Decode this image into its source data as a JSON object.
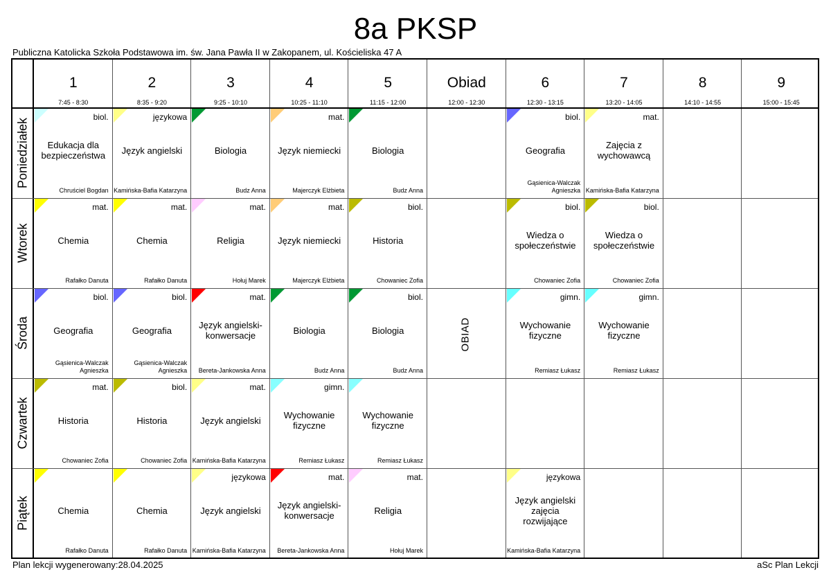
{
  "title": "8a PKSP",
  "school": "Publiczna Katolicka Szkoła Podstawowa im. św. Jana Pawła II w Zakopanem, ul. Kościeliska 47 A",
  "footer": {
    "generated": "Plan lekcji wygenerowany:28.04.2025",
    "brand": "aSc Plan Lekcji"
  },
  "periods": [
    {
      "label": "1",
      "time": "7:45 - 8:30"
    },
    {
      "label": "2",
      "time": "8:35 - 9:20"
    },
    {
      "label": "3",
      "time": "9:25 - 10:10"
    },
    {
      "label": "4",
      "time": "10:25 - 11:10"
    },
    {
      "label": "5",
      "time": "11:15 - 12:00"
    },
    {
      "label": "Obiad",
      "time": "12:00 - 12:30"
    },
    {
      "label": "6",
      "time": "12:30 - 13:15"
    },
    {
      "label": "7",
      "time": "13:20 - 14:05"
    },
    {
      "label": "8",
      "time": "14:10 - 14:55"
    },
    {
      "label": "9",
      "time": "15:00 - 15:45"
    }
  ],
  "lunch_label": "OBIAD",
  "days": [
    "Poniedziałek",
    "Wtorek",
    "Środa",
    "Czwartek",
    "Piątek"
  ],
  "lessons": [
    {
      "day": 0,
      "col": 0,
      "group": "biol.",
      "subject": "Edukacja dla bezpieczeństwa",
      "teacher": "Chruściel Bogdan",
      "color": "#ccffff"
    },
    {
      "day": 0,
      "col": 1,
      "group": "językowa",
      "subject": "Język angielski",
      "teacher": "Kamińska-Bafia Katarzyna",
      "color": "#ffff88"
    },
    {
      "day": 0,
      "col": 2,
      "group": "",
      "subject": "Biologia",
      "teacher": "Budz Anna",
      "color": "#009933"
    },
    {
      "day": 0,
      "col": 3,
      "group": "mat.",
      "subject": "Język niemiecki",
      "teacher": "Majerczyk Elżbieta",
      "color": "#ffcc77"
    },
    {
      "day": 0,
      "col": 4,
      "group": "",
      "subject": "Biologia",
      "teacher": "Budz Anna",
      "color": "#009933"
    },
    {
      "day": 0,
      "col": 6,
      "group": "biol.",
      "subject": "Geografia",
      "teacher": "Gąsienica-Walczak Agnieszka",
      "color": "#6666ff"
    },
    {
      "day": 0,
      "col": 7,
      "group": "mat.",
      "subject": "Zajęcia z wychowawcą",
      "teacher": "Kamińska-Bafia Katarzyna",
      "color": "#ffff88"
    },
    {
      "day": 1,
      "col": 0,
      "group": "mat.",
      "subject": "Chemia",
      "teacher": "Rafałko Danuta",
      "color": "#ffff00"
    },
    {
      "day": 1,
      "col": 1,
      "group": "mat.",
      "subject": "Chemia",
      "teacher": "Rafałko Danuta",
      "color": "#ffff00"
    },
    {
      "day": 1,
      "col": 2,
      "group": "mat.",
      "subject": "Religia",
      "teacher": "Hołuj Marek",
      "color": "#ffccff"
    },
    {
      "day": 1,
      "col": 3,
      "group": "mat.",
      "subject": "Język niemiecki",
      "teacher": "Majerczyk Elżbieta",
      "color": "#ffcc77"
    },
    {
      "day": 1,
      "col": 4,
      "group": "biol.",
      "subject": "Historia",
      "teacher": "Chowaniec Zofia",
      "color": "#bbbb00"
    },
    {
      "day": 1,
      "col": 6,
      "group": "biol.",
      "subject": "Wiedza o społeczeństwie",
      "teacher": "Chowaniec Zofia",
      "color": "#bbbb00"
    },
    {
      "day": 1,
      "col": 7,
      "group": "biol.",
      "subject": "Wiedza o społeczeństwie",
      "teacher": "Chowaniec Zofia",
      "color": "#bbbb00"
    },
    {
      "day": 2,
      "col": 0,
      "group": "biol.",
      "subject": "Geografia",
      "teacher": "Gąsienica-Walczak Agnieszka",
      "color": "#6666ff"
    },
    {
      "day": 2,
      "col": 1,
      "group": "biol.",
      "subject": "Geografia",
      "teacher": "Gąsienica-Walczak Agnieszka",
      "color": "#6666ff"
    },
    {
      "day": 2,
      "col": 2,
      "group": "mat.",
      "subject": "Język angielski-konwersacje",
      "teacher": "Bereta-Jankowska Anna",
      "color": "#ff0000"
    },
    {
      "day": 2,
      "col": 3,
      "group": "",
      "subject": "Biologia",
      "teacher": "Budz Anna",
      "color": "#009933"
    },
    {
      "day": 2,
      "col": 4,
      "group": "biol.",
      "subject": "Biologia",
      "teacher": "Budz Anna",
      "color": "#009933"
    },
    {
      "day": 2,
      "col": 6,
      "group": "gimn.",
      "subject": "Wychowanie fizyczne",
      "teacher": "Remiasz Łukasz",
      "color": "#66ffff"
    },
    {
      "day": 2,
      "col": 7,
      "group": "gimn.",
      "subject": "Wychowanie fizyczne",
      "teacher": "Remiasz Łukasz",
      "color": "#66ffff"
    },
    {
      "day": 3,
      "col": 0,
      "group": "mat.",
      "subject": "Historia",
      "teacher": "Chowaniec Zofia",
      "color": "#bbbb00"
    },
    {
      "day": 3,
      "col": 1,
      "group": "biol.",
      "subject": "Historia",
      "teacher": "Chowaniec Zofia",
      "color": "#bbbb00"
    },
    {
      "day": 3,
      "col": 2,
      "group": "mat.",
      "subject": "Język angielski",
      "teacher": "Kamińska-Bafia Katarzyna",
      "color": "#ffff88"
    },
    {
      "day": 3,
      "col": 3,
      "group": "gimn.",
      "subject": "Wychowanie fizyczne",
      "teacher": "Remiasz Łukasz",
      "color": "#88ffff"
    },
    {
      "day": 3,
      "col": 4,
      "group": "",
      "subject": "Wychowanie fizyczne",
      "teacher": "Remiasz Łukasz",
      "color": "#88ffff"
    },
    {
      "day": 4,
      "col": 0,
      "group": "",
      "subject": "Chemia",
      "teacher": "Rafałko Danuta",
      "color": "#ffff00"
    },
    {
      "day": 4,
      "col": 1,
      "group": "",
      "subject": "Chemia",
      "teacher": "Rafałko Danuta",
      "color": "#ffff00"
    },
    {
      "day": 4,
      "col": 2,
      "group": "językowa",
      "subject": "Język angielski",
      "teacher": "Kamińska-Bafia Katarzyna",
      "color": "#ffff88"
    },
    {
      "day": 4,
      "col": 3,
      "group": "mat.",
      "subject": "Język angielski-konwersacje",
      "teacher": "Bereta-Jankowska Anna",
      "color": "#ff0000"
    },
    {
      "day": 4,
      "col": 4,
      "group": "mat.",
      "subject": "Religia",
      "teacher": "Hołuj Marek",
      "color": "#ffccff"
    },
    {
      "day": 4,
      "col": 6,
      "group": "językowa",
      "subject": "Język angielski zajęcia rozwijające",
      "teacher": "Kamińska-Bafia Katarzyna",
      "color": "#ffff88"
    }
  ]
}
